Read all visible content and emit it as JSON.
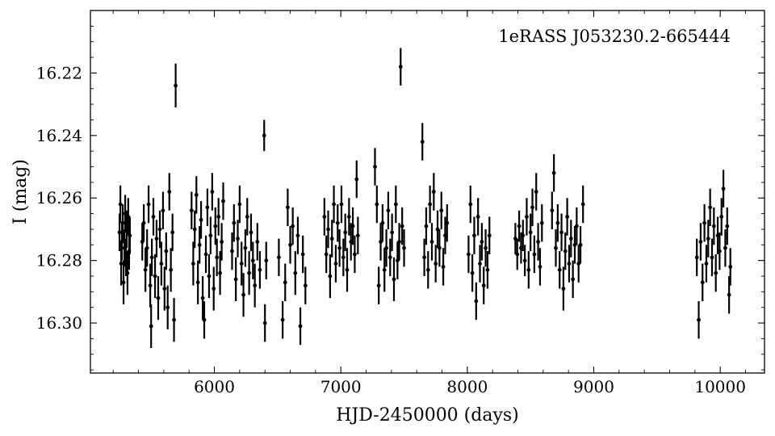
{
  "chart_data": {
    "type": "scatter",
    "title": "",
    "annotation": "1eRASS J053230.2-665444",
    "xlabel": "HJD-2450000 (days)",
    "ylabel": "I (mag)",
    "xlim": [
      5020,
      10350
    ],
    "ylim": [
      16.316,
      16.2
    ],
    "y_inverted": true,
    "x_ticks": [
      6000,
      7000,
      8000,
      9000,
      10000
    ],
    "x_tick_labels": [
      "6000",
      "7000",
      "8000",
      "9000",
      "10000"
    ],
    "y_ticks": [
      16.22,
      16.24,
      16.26,
      16.28,
      16.3
    ],
    "y_tick_labels": [
      "16.22",
      "16.24",
      "16.26",
      "16.28",
      "16.30"
    ],
    "grid": false,
    "marker_color": "#000000",
    "series": [
      {
        "points": [
          [
            5250,
            16.271,
            0.006
          ],
          [
            5257,
            16.262,
            0.006
          ],
          [
            5263,
            16.281,
            0.007
          ],
          [
            5269,
            16.274,
            0.006
          ],
          [
            5276,
            16.268,
            0.006
          ],
          [
            5282,
            16.287,
            0.007
          ],
          [
            5289,
            16.276,
            0.006
          ],
          [
            5295,
            16.265,
            0.006
          ],
          [
            5301,
            16.279,
            0.006
          ],
          [
            5307,
            16.27,
            0.006
          ],
          [
            5313,
            16.284,
            0.007
          ],
          [
            5319,
            16.266,
            0.006
          ],
          [
            5326,
            16.277,
            0.006
          ],
          [
            5332,
            16.272,
            0.006
          ],
          [
            5430,
            16.274,
            0.006
          ],
          [
            5442,
            16.268,
            0.006
          ],
          [
            5455,
            16.283,
            0.007
          ],
          [
            5468,
            16.276,
            0.006
          ],
          [
            5480,
            16.262,
            0.006
          ],
          [
            5493,
            16.288,
            0.007
          ],
          [
            5500,
            16.301,
            0.007
          ],
          [
            5506,
            16.279,
            0.006
          ],
          [
            5518,
            16.266,
            0.006
          ],
          [
            5531,
            16.285,
            0.007
          ],
          [
            5543,
            16.273,
            0.006
          ],
          [
            5556,
            16.292,
            0.007
          ],
          [
            5569,
            16.27,
            0.006
          ],
          [
            5581,
            16.281,
            0.007
          ],
          [
            5594,
            16.264,
            0.006
          ],
          [
            5606,
            16.289,
            0.007
          ],
          [
            5619,
            16.277,
            0.006
          ],
          [
            5631,
            16.295,
            0.007
          ],
          [
            5644,
            16.258,
            0.006
          ],
          [
            5656,
            16.283,
            0.007
          ],
          [
            5669,
            16.271,
            0.006
          ],
          [
            5681,
            16.299,
            0.007
          ],
          [
            5694,
            16.224,
            0.007
          ],
          [
            5820,
            16.264,
            0.006
          ],
          [
            5833,
            16.281,
            0.007
          ],
          [
            5845,
            16.27,
            0.006
          ],
          [
            5858,
            16.259,
            0.006
          ],
          [
            5870,
            16.287,
            0.007
          ],
          [
            5883,
            16.275,
            0.006
          ],
          [
            5895,
            16.267,
            0.006
          ],
          [
            5908,
            16.292,
            0.007
          ],
          [
            5920,
            16.299,
            0.006
          ],
          [
            5933,
            16.278,
            0.006
          ],
          [
            5945,
            16.263,
            0.006
          ],
          [
            5958,
            16.285,
            0.007
          ],
          [
            5970,
            16.272,
            0.006
          ],
          [
            5983,
            16.258,
            0.006
          ],
          [
            5995,
            16.289,
            0.007
          ],
          [
            6008,
            16.269,
            0.006
          ],
          [
            6020,
            16.279,
            0.006
          ],
          [
            6033,
            16.266,
            0.006
          ],
          [
            6045,
            16.284,
            0.007
          ],
          [
            6058,
            16.274,
            0.006
          ],
          [
            6070,
            16.261,
            0.006
          ],
          [
            6140,
            16.277,
            0.006
          ],
          [
            6155,
            16.268,
            0.006
          ],
          [
            6170,
            16.286,
            0.007
          ],
          [
            6185,
            16.273,
            0.006
          ],
          [
            6200,
            16.262,
            0.006
          ],
          [
            6215,
            16.281,
            0.007
          ],
          [
            6230,
            16.291,
            0.007
          ],
          [
            6245,
            16.276,
            0.006
          ],
          [
            6260,
            16.266,
            0.006
          ],
          [
            6275,
            16.284,
            0.007
          ],
          [
            6290,
            16.271,
            0.006
          ],
          [
            6305,
            16.28,
            0.006
          ],
          [
            6320,
            16.288,
            0.007
          ],
          [
            6340,
            16.274,
            0.006
          ],
          [
            6360,
            16.283,
            0.006
          ],
          [
            6394,
            16.24,
            0.005
          ],
          [
            6400,
            16.3,
            0.006
          ],
          [
            6410,
            16.28,
            0.006
          ],
          [
            6510,
            16.279,
            0.006
          ],
          [
            6540,
            16.299,
            0.006
          ],
          [
            6560,
            16.287,
            0.006
          ],
          [
            6580,
            16.263,
            0.006
          ],
          [
            6600,
            16.275,
            0.006
          ],
          [
            6620,
            16.269,
            0.006
          ],
          [
            6640,
            16.284,
            0.007
          ],
          [
            6660,
            16.272,
            0.006
          ],
          [
            6680,
            16.301,
            0.006
          ],
          [
            6700,
            16.278,
            0.006
          ],
          [
            6720,
            16.288,
            0.006
          ],
          [
            6870,
            16.266,
            0.006
          ],
          [
            6885,
            16.278,
            0.006
          ],
          [
            6900,
            16.27,
            0.006
          ],
          [
            6915,
            16.285,
            0.007
          ],
          [
            6930,
            16.273,
            0.006
          ],
          [
            6945,
            16.262,
            0.006
          ],
          [
            6960,
            16.281,
            0.006
          ],
          [
            6975,
            16.268,
            0.006
          ],
          [
            6990,
            16.276,
            0.006
          ],
          [
            7005,
            16.262,
            0.006
          ],
          [
            7020,
            16.279,
            0.006
          ],
          [
            7035,
            16.271,
            0.006
          ],
          [
            7050,
            16.283,
            0.007
          ],
          [
            7065,
            16.266,
            0.006
          ],
          [
            7080,
            16.274,
            0.006
          ],
          [
            7095,
            16.269,
            0.006
          ],
          [
            7110,
            16.278,
            0.006
          ],
          [
            7125,
            16.254,
            0.006
          ],
          [
            7135,
            16.272,
            0.006
          ],
          [
            7270,
            16.25,
            0.006
          ],
          [
            7285,
            16.262,
            0.006
          ],
          [
            7300,
            16.288,
            0.006
          ],
          [
            7315,
            16.274,
            0.006
          ],
          [
            7330,
            16.268,
            0.006
          ],
          [
            7345,
            16.283,
            0.007
          ],
          [
            7360,
            16.276,
            0.006
          ],
          [
            7375,
            16.264,
            0.006
          ],
          [
            7390,
            16.279,
            0.006
          ],
          [
            7405,
            16.271,
            0.006
          ],
          [
            7420,
            16.286,
            0.007
          ],
          [
            7435,
            16.262,
            0.006
          ],
          [
            7448,
            16.28,
            0.006
          ],
          [
            7462,
            16.274,
            0.006
          ],
          [
            7473,
            16.218,
            0.006
          ],
          [
            7485,
            16.269,
            0.006
          ],
          [
            7500,
            16.276,
            0.006
          ],
          [
            7645,
            16.242,
            0.006
          ],
          [
            7660,
            16.279,
            0.006
          ],
          [
            7675,
            16.269,
            0.006
          ],
          [
            7690,
            16.283,
            0.006
          ],
          [
            7705,
            16.262,
            0.006
          ],
          [
            7720,
            16.274,
            0.006
          ],
          [
            7735,
            16.258,
            0.006
          ],
          [
            7750,
            16.281,
            0.006
          ],
          [
            7765,
            16.27,
            0.006
          ],
          [
            7780,
            16.276,
            0.006
          ],
          [
            7795,
            16.264,
            0.006
          ],
          [
            7810,
            16.282,
            0.006
          ],
          [
            7825,
            16.272,
            0.006
          ],
          [
            7840,
            16.268,
            0.006
          ],
          [
            8010,
            16.278,
            0.006
          ],
          [
            8025,
            16.262,
            0.006
          ],
          [
            8040,
            16.284,
            0.006
          ],
          [
            8055,
            16.272,
            0.006
          ],
          [
            8070,
            16.293,
            0.006
          ],
          [
            8085,
            16.266,
            0.006
          ],
          [
            8100,
            16.281,
            0.006
          ],
          [
            8115,
            16.274,
            0.006
          ],
          [
            8130,
            16.288,
            0.006
          ],
          [
            8145,
            16.276,
            0.006
          ],
          [
            8160,
            16.283,
            0.006
          ],
          [
            8175,
            16.272,
            0.006
          ],
          [
            8380,
            16.273,
            0.005
          ],
          [
            8395,
            16.278,
            0.005
          ],
          [
            8410,
            16.269,
            0.005
          ],
          [
            8425,
            16.276,
            0.005
          ],
          [
            8440,
            16.272,
            0.005
          ],
          [
            8455,
            16.28,
            0.005
          ],
          [
            8470,
            16.266,
            0.006
          ],
          [
            8485,
            16.283,
            0.006
          ],
          [
            8500,
            16.271,
            0.006
          ],
          [
            8515,
            16.263,
            0.006
          ],
          [
            8530,
            16.278,
            0.006
          ],
          [
            8545,
            16.258,
            0.006
          ],
          [
            8560,
            16.274,
            0.006
          ],
          [
            8575,
            16.282,
            0.006
          ],
          [
            8590,
            16.268,
            0.006
          ],
          [
            8670,
            16.264,
            0.006
          ],
          [
            8685,
            16.252,
            0.006
          ],
          [
            8700,
            16.276,
            0.006
          ],
          [
            8715,
            16.268,
            0.006
          ],
          [
            8730,
            16.283,
            0.006
          ],
          [
            8745,
            16.271,
            0.006
          ],
          [
            8760,
            16.289,
            0.007
          ],
          [
            8775,
            16.277,
            0.006
          ],
          [
            8790,
            16.266,
            0.006
          ],
          [
            8805,
            16.281,
            0.006
          ],
          [
            8820,
            16.273,
            0.006
          ],
          [
            8835,
            16.286,
            0.006
          ],
          [
            8850,
            16.275,
            0.006
          ],
          [
            8865,
            16.269,
            0.006
          ],
          [
            8880,
            16.281,
            0.006
          ],
          [
            8895,
            16.275,
            0.006
          ],
          [
            8915,
            16.262,
            0.006
          ],
          [
            9815,
            16.279,
            0.006
          ],
          [
            9830,
            16.299,
            0.006
          ],
          [
            9845,
            16.274,
            0.006
          ],
          [
            9860,
            16.287,
            0.006
          ],
          [
            9875,
            16.268,
            0.006
          ],
          [
            9890,
            16.281,
            0.006
          ],
          [
            9905,
            16.273,
            0.006
          ],
          [
            9920,
            16.263,
            0.006
          ],
          [
            9935,
            16.279,
            0.006
          ],
          [
            9950,
            16.269,
            0.006
          ],
          [
            9965,
            16.284,
            0.006
          ],
          [
            9980,
            16.272,
            0.006
          ],
          [
            9995,
            16.277,
            0.006
          ],
          [
            10010,
            16.266,
            0.006
          ],
          [
            10025,
            16.257,
            0.006
          ],
          [
            10040,
            16.276,
            0.006
          ],
          [
            10055,
            16.269,
            0.006
          ],
          [
            10070,
            16.291,
            0.006
          ],
          [
            10080,
            16.282,
            0.006
          ]
        ]
      }
    ]
  }
}
